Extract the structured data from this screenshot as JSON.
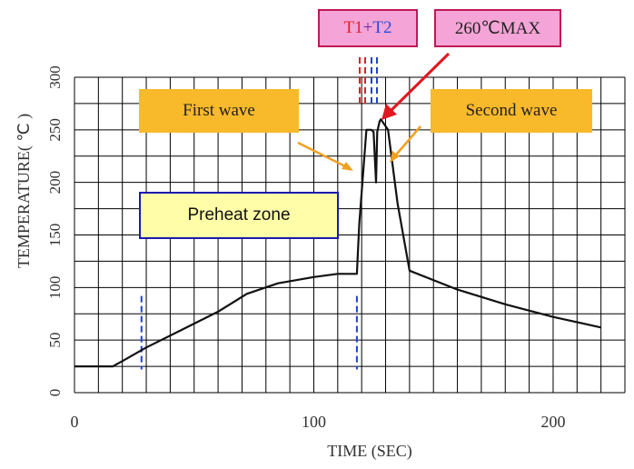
{
  "chart_data": {
    "type": "line",
    "xlabel": "TIME (SEC)",
    "ylabel": "TEMPERATURE( ℃ )",
    "xlim": [
      0,
      230
    ],
    "ylim": [
      0,
      300
    ],
    "x_ticks": [
      0,
      100,
      200
    ],
    "y_ticks": [
      0,
      50,
      100,
      150,
      200,
      250,
      300
    ],
    "grid": true,
    "series": [
      {
        "x": [
          0,
          16,
          20,
          30,
          45,
          60,
          72,
          85,
          100,
          110,
          118,
          119,
          122,
          124,
          125,
          126,
          126.5,
          127.5,
          128,
          131,
          135,
          140,
          160,
          180,
          200,
          220
        ],
        "y": [
          25,
          25,
          30,
          43,
          60,
          77,
          94,
          104,
          110,
          113,
          113,
          160,
          250,
          250,
          248,
          200,
          248,
          258,
          260,
          250,
          180,
          116,
          98,
          84,
          72,
          62
        ]
      }
    ],
    "annotations": {
      "first_wave": "First wave",
      "second_wave": "Second wave",
      "preheat_zone": "Preheat zone",
      "t1": "T1",
      "plus": "+",
      "t2": "T2",
      "max_temp": "260℃MAX"
    },
    "colors": {
      "line": "#111111",
      "grid": "#000000",
      "wave_box": "#f8b92a",
      "preheat_box": "#fffda8",
      "pink_box": "#f4a4d6",
      "orange_arrow": "#f0a020",
      "red_arrow": "#e01820",
      "red_dash": "#e02020",
      "blue_dash": "#2040d8"
    }
  }
}
